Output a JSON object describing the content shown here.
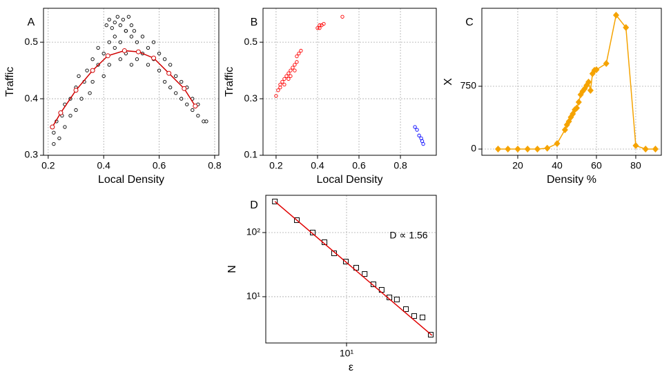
{
  "chart_data": [
    {
      "type": "scatter",
      "label": "A",
      "x_label": "Local Density",
      "y_label": "Traffic",
      "xlim": [
        0.183,
        0.815
      ],
      "ylim": [
        0.3,
        0.56
      ],
      "xticks": [
        0.2,
        0.4,
        0.6,
        0.8
      ],
      "yticks": [
        0.3,
        0.4,
        0.5
      ],
      "grid": true,
      "series": [
        {
          "color": "#000000",
          "marker": "open-circle",
          "x": [
            0.22,
            0.22,
            0.23,
            0.24,
            0.25,
            0.26,
            0.26,
            0.28,
            0.28,
            0.3,
            0.3,
            0.31,
            0.32,
            0.33,
            0.34,
            0.35,
            0.36,
            0.36,
            0.38,
            0.38,
            0.4,
            0.4,
            0.42,
            0.42,
            0.44,
            0.44,
            0.46,
            0.46,
            0.48,
            0.48,
            0.5,
            0.5,
            0.52,
            0.52,
            0.54,
            0.54,
            0.56,
            0.56,
            0.58,
            0.58,
            0.6,
            0.6,
            0.62,
            0.62,
            0.64,
            0.64,
            0.66,
            0.66,
            0.68,
            0.68,
            0.7,
            0.7,
            0.72,
            0.72,
            0.74,
            0.74,
            0.76,
            0.77,
            0.41,
            0.42,
            0.43,
            0.44,
            0.45,
            0.46,
            0.47,
            0.48,
            0.49,
            0.5,
            0.51
          ],
          "values": [
            0.34,
            0.32,
            0.36,
            0.33,
            0.37,
            0.39,
            0.35,
            0.4,
            0.37,
            0.42,
            0.38,
            0.44,
            0.4,
            0.43,
            0.45,
            0.41,
            0.47,
            0.43,
            0.46,
            0.49,
            0.48,
            0.44,
            0.5,
            0.46,
            0.49,
            0.51,
            0.47,
            0.5,
            0.52,
            0.48,
            0.51,
            0.46,
            0.5,
            0.47,
            0.51,
            0.48,
            0.49,
            0.46,
            0.5,
            0.47,
            0.48,
            0.45,
            0.47,
            0.43,
            0.46,
            0.42,
            0.44,
            0.41,
            0.43,
            0.4,
            0.42,
            0.39,
            0.4,
            0.38,
            0.39,
            0.37,
            0.36,
            0.36,
            0.53,
            0.54,
            0.525,
            0.535,
            0.545,
            0.53,
            0.54,
            0.52,
            0.545,
            0.53,
            0.52
          ]
        },
        {
          "color": "#d00000",
          "marker": "white-dot",
          "line": true,
          "x": [
            0.215,
            0.245,
            0.3,
            0.36,
            0.415,
            0.475,
            0.525,
            0.58,
            0.635,
            0.69,
            0.73
          ],
          "values": [
            0.35,
            0.375,
            0.415,
            0.45,
            0.476,
            0.485,
            0.483,
            0.472,
            0.445,
            0.418,
            0.387
          ]
        }
      ]
    },
    {
      "type": "scatter",
      "label": "B",
      "x_label": "Local Density",
      "y_label": "Traffic",
      "xlim": [
        0.137,
        0.973
      ],
      "ylim": [
        0.1,
        0.62
      ],
      "xticks": [
        0.2,
        0.4,
        0.6,
        0.8
      ],
      "yticks": [
        0.1,
        0.3,
        0.5
      ],
      "grid": true,
      "series": [
        {
          "color": "#ff0000",
          "marker": "open-circle",
          "x": [
            0.2,
            0.21,
            0.22,
            0.22,
            0.23,
            0.24,
            0.24,
            0.25,
            0.26,
            0.26,
            0.27,
            0.27,
            0.28,
            0.29,
            0.29,
            0.3,
            0.3,
            0.31,
            0.32,
            0.4,
            0.41,
            0.41,
            0.42,
            0.43,
            0.52
          ],
          "values": [
            0.31,
            0.33,
            0.35,
            0.34,
            0.36,
            0.37,
            0.35,
            0.38,
            0.39,
            0.37,
            0.4,
            0.38,
            0.41,
            0.42,
            0.4,
            0.43,
            0.45,
            0.46,
            0.47,
            0.55,
            0.56,
            0.55,
            0.56,
            0.565,
            0.59
          ]
        },
        {
          "color": "#0000ff",
          "marker": "open-circle",
          "x": [
            0.87,
            0.88,
            0.89,
            0.9,
            0.905,
            0.91
          ],
          "values": [
            0.2,
            0.19,
            0.17,
            0.16,
            0.15,
            0.14
          ]
        }
      ]
    },
    {
      "type": "line",
      "label": "C",
      "x_label": "Density %",
      "y_label": "X",
      "xlim": [
        1.75,
        93
      ],
      "ylim": [
        -74,
        1681
      ],
      "xticks": [
        20,
        40,
        60,
        80
      ],
      "yticks": [
        0,
        750
      ],
      "grid": true,
      "series": [
        {
          "color": "#f5a300",
          "marker": "diamond",
          "line": true,
          "x": [
            10,
            15,
            20,
            25,
            30,
            35,
            40,
            44,
            45,
            46,
            47,
            48,
            49,
            50,
            51,
            52,
            53,
            54,
            55,
            56,
            57,
            58,
            59,
            60,
            65,
            70,
            75,
            80,
            85,
            90
          ],
          "values": [
            0,
            0,
            0,
            0,
            0,
            10,
            66,
            230,
            290,
            330,
            380,
            420,
            470,
            490,
            560,
            650,
            690,
            720,
            760,
            800,
            700,
            900,
            940,
            948,
            1022,
            1599,
            1451,
            41,
            0,
            0
          ]
        }
      ]
    },
    {
      "type": "scatter",
      "label": "D",
      "x_label": "ε",
      "y_label": "N",
      "annotation": "D ∝ 1.56",
      "xscale": "log",
      "yscale": "log",
      "xlim": [
        2.03,
        58.8
      ],
      "ylim": [
        1.9,
        381
      ],
      "xticks": [
        {
          "value": 10,
          "label": "10¹"
        }
      ],
      "yticks": [
        {
          "value": 10,
          "label": "10¹"
        },
        {
          "value": 100,
          "label": "10²"
        }
      ],
      "grid": true,
      "series": [
        {
          "color": "#000000",
          "marker": "open-square",
          "x": [
            2.43,
            3.75,
            5.13,
            6.47,
            7.82,
            9.86,
            12.1,
            14.3,
            17.0,
            20.0,
            23.3,
            27.0,
            32.3,
            38.0,
            44.8,
            52.7
          ],
          "values": [
            305,
            156,
            100,
            70.6,
            47.5,
            35.3,
            28.3,
            22.6,
            15.6,
            12.8,
            9.75,
            9.06,
            6.4,
            5.0,
            4.76,
            2.56
          ]
        },
        {
          "color": "#e00000",
          "marker": "none",
          "line": true,
          "x": [
            2.43,
            54
          ],
          "values": [
            305,
            2.5
          ]
        }
      ]
    }
  ]
}
